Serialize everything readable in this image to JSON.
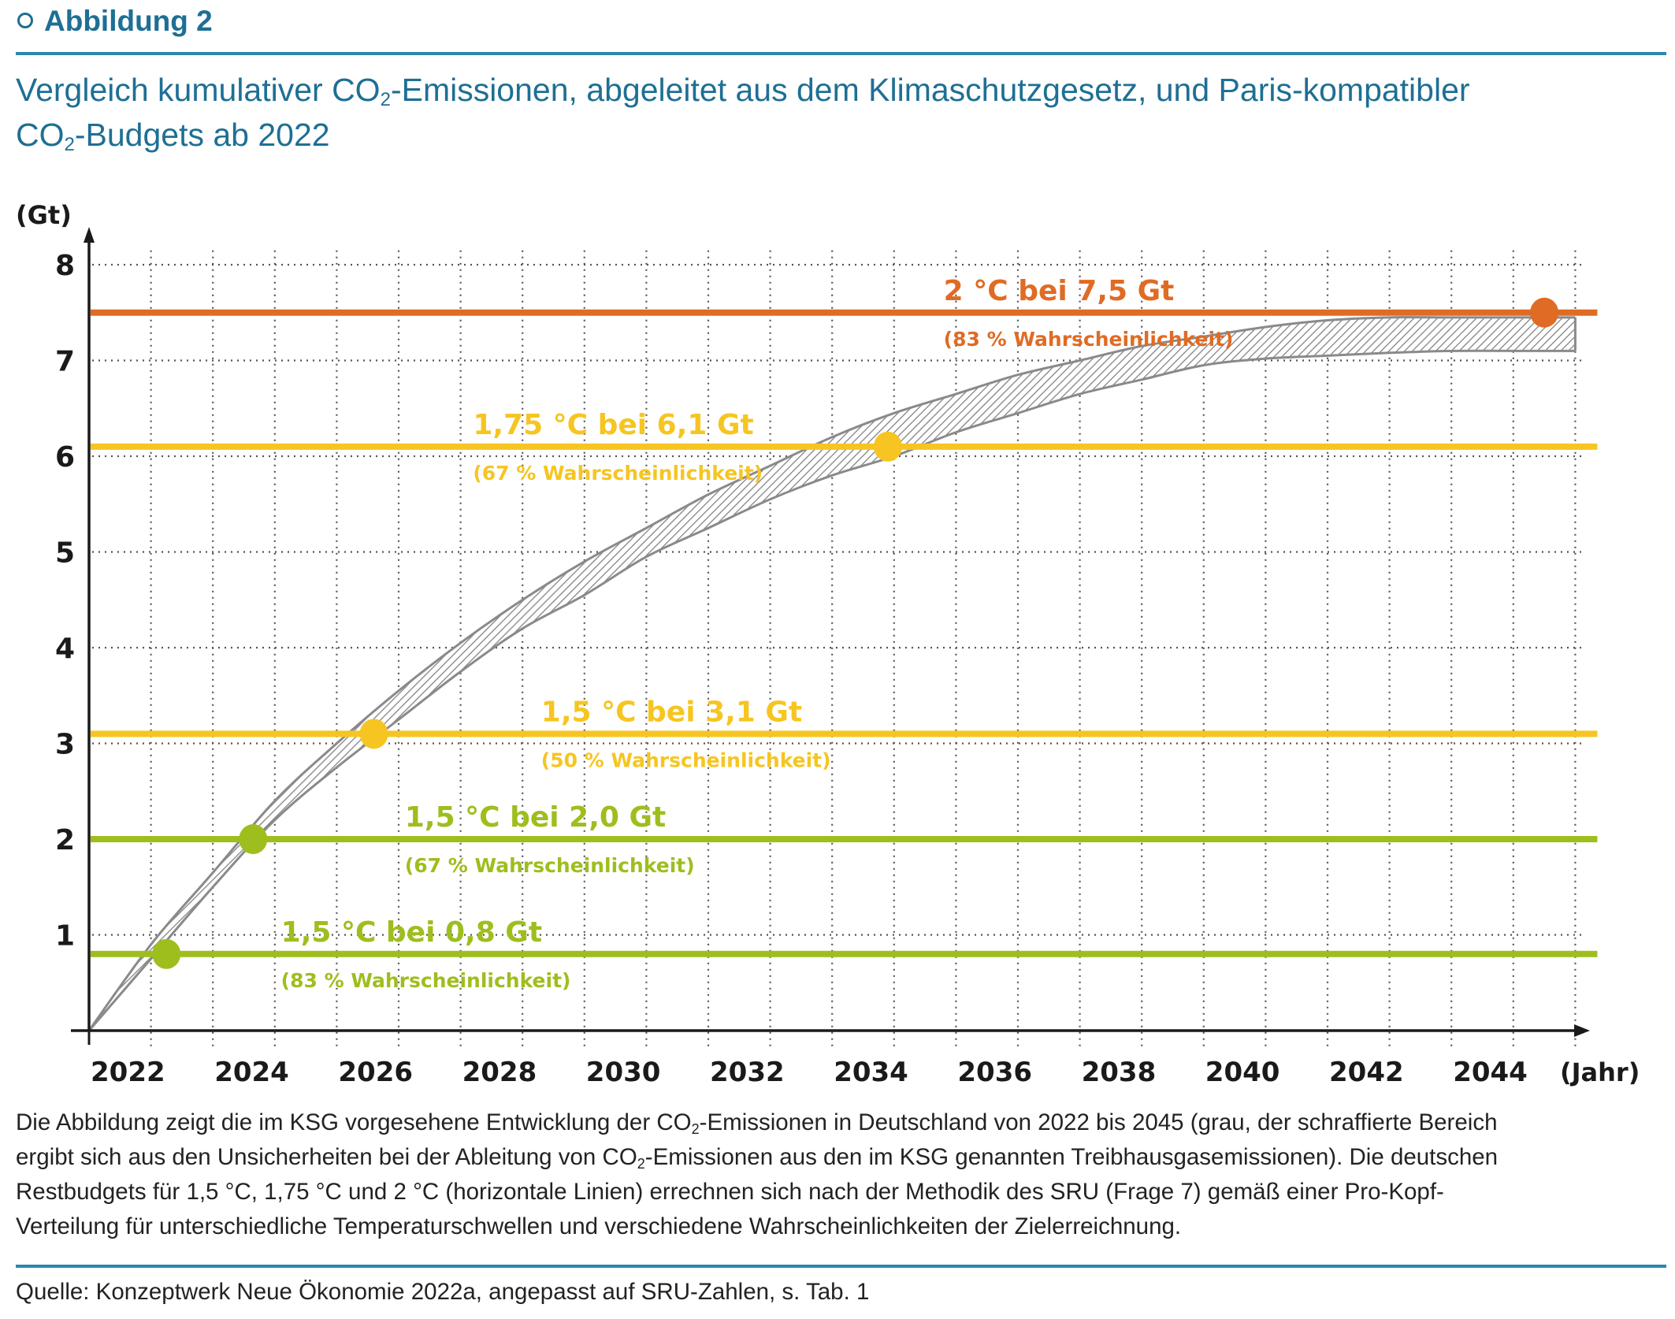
{
  "header": {
    "figure_label": "Abbildung 2",
    "title_part1": "Vergleich kumulativer CO",
    "title_sub": "2",
    "title_part2": "-Emissionen, abgeleitet aus dem Klimaschutzgesetz, und Paris-kompatibler",
    "title_line2_part1": "CO",
    "title_line2_sub": "2",
    "title_line2_part2": "-Budgets ab 2022"
  },
  "colors": {
    "brand": "#1e6f94",
    "orange": "#e06b24",
    "yellow": "#f6c521",
    "green": "#9ebe1e",
    "band": "#8a8a8a",
    "axis": "#1a1a1a"
  },
  "chart_data": {
    "type": "area",
    "title": "Vergleich kumulativer CO2-Emissionen, abgeleitet aus dem Klimaschutzgesetz, und Paris-kompatibler CO2-Budgets ab 2022",
    "ylabel": "(Gt)",
    "xlabel": "(Jahr)",
    "xlim": [
      2022,
      2046
    ],
    "ylim": [
      0,
      8
    ],
    "yticks": [
      "8",
      "7",
      "6",
      "5",
      "4",
      "3",
      "2",
      "1"
    ],
    "ytick_values": [
      8,
      7,
      6,
      5,
      4,
      3,
      2,
      1
    ],
    "xticks": [
      "2022",
      "2024",
      "2026",
      "2028",
      "2030",
      "2032",
      "2034",
      "2036",
      "2038",
      "2040",
      "2042",
      "2044"
    ],
    "xtick_values": [
      2022,
      2024,
      2026,
      2028,
      2030,
      2032,
      2034,
      2036,
      2038,
      2040,
      2042,
      2044
    ],
    "grid": true,
    "ksg_band": {
      "name": "KSG kumulative CO2-Emissionen (Unsicherheitsbereich)",
      "x": [
        2022,
        2023,
        2024,
        2025,
        2026,
        2027,
        2028,
        2029,
        2030,
        2031,
        2032,
        2033,
        2034,
        2035,
        2036,
        2037,
        2038,
        2039,
        2040,
        2041,
        2042,
        2043,
        2044,
        2045,
        2046
      ],
      "upper": [
        0,
        0.9,
        1.65,
        2.4,
        3.0,
        3.55,
        4.05,
        4.5,
        4.9,
        5.25,
        5.6,
        5.9,
        6.2,
        6.45,
        6.65,
        6.85,
        7.0,
        7.15,
        7.25,
        7.35,
        7.42,
        7.45,
        7.45,
        7.45,
        7.45
      ],
      "lower": [
        0,
        0.75,
        1.5,
        2.2,
        2.75,
        3.25,
        3.75,
        4.2,
        4.55,
        4.95,
        5.25,
        5.55,
        5.8,
        6.0,
        6.25,
        6.45,
        6.65,
        6.8,
        6.95,
        7.02,
        7.05,
        7.08,
        7.1,
        7.1,
        7.1
      ]
    },
    "budgets": [
      {
        "name": "2 °C bei 7,5 Gt",
        "sub": "(83 % Wahrscheinlichkeit)",
        "value": 7.5,
        "color": "#e06b24",
        "crossing_year": 2045.5,
        "label_year": 2035.8
      },
      {
        "name": "1,75 °C bei 6,1 Gt",
        "sub": "(67 % Wahrscheinlichkeit)",
        "value": 6.1,
        "color": "#f6c521",
        "crossing_year": 2034.9,
        "label_year": 2028.2
      },
      {
        "name": "1,5 °C bei 3,1 Gt",
        "sub": "(50 % Wahrscheinlichkeit)",
        "value": 3.1,
        "color": "#f6c521",
        "crossing_year": 2026.6,
        "label_year": 2029.3
      },
      {
        "name": "1,5 °C bei 2,0 Gt",
        "sub": "(67 % Wahrscheinlichkeit)",
        "value": 2.0,
        "color": "#9ebe1e",
        "crossing_year": 2024.65,
        "label_year": 2027.1
      },
      {
        "name": "1,5 °C bei 0,8 Gt",
        "sub": "(83 % Wahrscheinlichkeit)",
        "value": 0.8,
        "color": "#9ebe1e",
        "crossing_year": 2023.25,
        "label_year": 2025.1
      }
    ]
  },
  "caption": {
    "l1a": "Die Abbildung zeigt die im KSG vorgesehene Entwicklung der CO",
    "l1sub": "2",
    "l1b": "-Emissionen in Deutschland von 2022 bis 2045 (grau, der schraffierte Bereich",
    "l2a": "ergibt sich aus den Unsicherheiten bei der Ableitung von CO",
    "l2sub": "2",
    "l2b": "-Emissionen aus den im KSG genannten Treibhausgasemissionen). Die deutschen",
    "l3": "Restbudgets für 1,5 °C, 1,75 °C und 2 °C (horizontale Linien) errechnen sich nach der Methodik des SRU (Frage 7) gemäß einer Pro-Kopf-",
    "l4": "Verteilung für unterschiedliche Temperaturschwellen und verschiedene Wahrscheinlichkeiten der Zielerreichnung."
  },
  "source": "Quelle: Konzeptwerk Neue Ökonomie 2022a, angepasst auf SRU-Zahlen, s. Tab. 1"
}
